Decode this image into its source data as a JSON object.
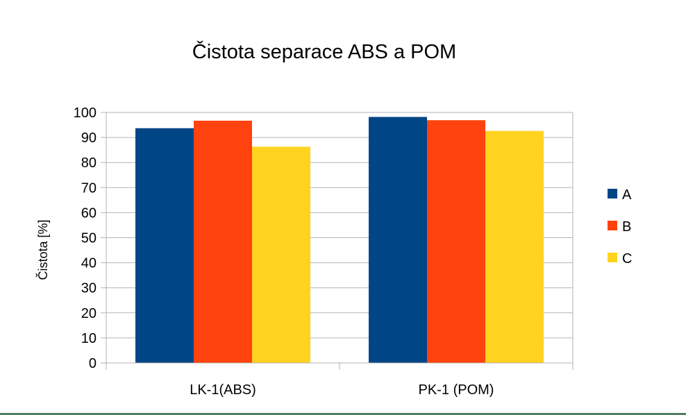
{
  "chart_data": {
    "type": "bar",
    "title": "Čistota separace ABS a POM",
    "xlabel": "",
    "ylabel": "Čistota [%]",
    "ylim": [
      0,
      100
    ],
    "yticks": [
      "0",
      "10",
      "20",
      "30",
      "40",
      "50",
      "60",
      "70",
      "80",
      "90",
      "100"
    ],
    "grid": true,
    "legend_position": "right",
    "categories": [
      "LK-1(ABS)",
      "PK-1 (POM)"
    ],
    "series": [
      {
        "name": "A",
        "color": "#004586",
        "values": [
          93.7,
          98.2
        ]
      },
      {
        "name": "B",
        "color": "#ff420e",
        "values": [
          96.7,
          96.9
        ]
      },
      {
        "name": "C",
        "color": "#ffd320",
        "values": [
          86.3,
          92.6
        ]
      }
    ]
  }
}
